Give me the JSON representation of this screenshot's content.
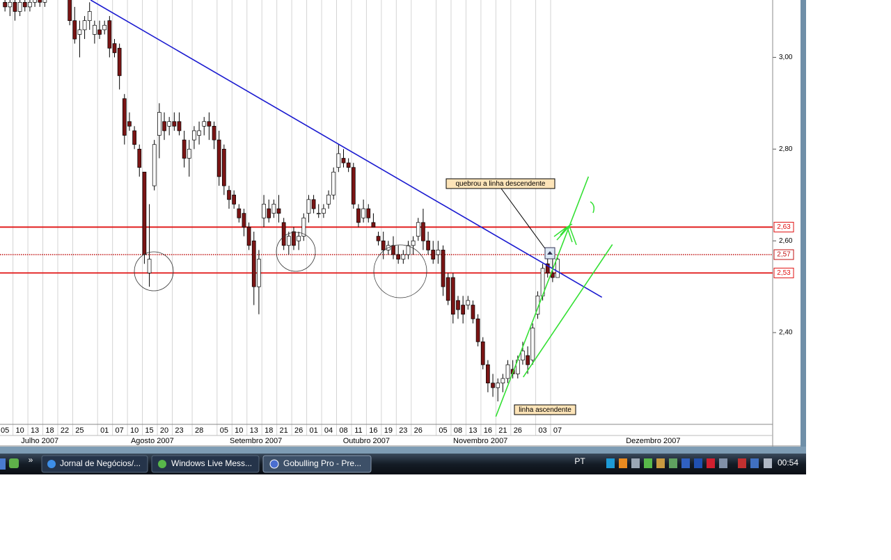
{
  "chart_data": {
    "type": "candlestick",
    "x": [
      0,
      1,
      2,
      3,
      4,
      5,
      6,
      7,
      8,
      13,
      14,
      15,
      16,
      17,
      18,
      19,
      20,
      21,
      22,
      23,
      24,
      25,
      26,
      27,
      28,
      29,
      30,
      31,
      32,
      33,
      34,
      35,
      36,
      37,
      38,
      39,
      40,
      41,
      42,
      43,
      44,
      45,
      46,
      47,
      48,
      49,
      50,
      51,
      52,
      53,
      54,
      55,
      56,
      57,
      58,
      59,
      60,
      61,
      62,
      63,
      64,
      65,
      66,
      67,
      68,
      69,
      70,
      71,
      72,
      73,
      74,
      75,
      76,
      77,
      78,
      79,
      80,
      81,
      82,
      83,
      84,
      85,
      86,
      87,
      88,
      89,
      90,
      91,
      92,
      93,
      94,
      95,
      96,
      97,
      98,
      99,
      100,
      101,
      102,
      103,
      104,
      105,
      106,
      107,
      108,
      109,
      110,
      111
    ],
    "open": [
      3.12,
      3.11,
      3.12,
      3.1,
      3.12,
      3.11,
      3.12,
      3.13,
      3.12,
      3.13,
      3.08,
      3.05,
      3.06,
      3.08,
      3.05,
      3.06,
      3.06,
      3.08,
      3.03,
      3.02,
      2.91,
      2.86,
      2.84,
      2.8,
      2.75,
      2.53,
      2.72,
      2.83,
      2.86,
      2.85,
      2.86,
      2.86,
      2.82,
      2.78,
      2.82,
      2.83,
      2.85,
      2.86,
      2.85,
      2.82,
      2.8,
      2.71,
      2.7,
      2.67,
      2.66,
      2.63,
      2.6,
      2.5,
      2.65,
      2.67,
      2.66,
      2.67,
      2.64,
      2.59,
      2.62,
      2.6,
      2.61,
      2.66,
      2.69,
      2.66,
      2.66,
      2.68,
      2.7,
      2.76,
      2.78,
      2.77,
      2.76,
      2.67,
      2.65,
      2.67,
      2.64,
      2.61,
      2.6,
      2.58,
      2.59,
      2.57,
      2.56,
      2.57,
      2.59,
      2.61,
      2.64,
      2.6,
      2.58,
      2.57,
      2.58,
      2.52,
      2.52,
      2.47,
      2.46,
      2.46,
      2.46,
      2.43,
      2.38,
      2.33,
      2.29,
      2.28,
      2.29,
      2.3,
      2.32,
      2.31,
      2.34,
      2.35,
      2.34,
      2.44,
      2.48,
      2.55,
      2.53,
      2.52
    ],
    "high": [
      3.14,
      3.13,
      3.14,
      3.13,
      3.14,
      3.13,
      3.14,
      3.15,
      3.14,
      3.14,
      3.11,
      3.08,
      3.09,
      3.12,
      3.08,
      3.08,
      3.08,
      3.09,
      3.04,
      3.03,
      2.92,
      2.88,
      2.85,
      2.81,
      2.75,
      2.68,
      2.82,
      2.9,
      2.88,
      2.87,
      2.88,
      2.88,
      2.84,
      2.82,
      2.85,
      2.86,
      2.87,
      2.88,
      2.86,
      2.84,
      2.81,
      2.72,
      2.71,
      2.68,
      2.67,
      2.64,
      2.62,
      2.58,
      2.7,
      2.69,
      2.69,
      2.7,
      2.65,
      2.62,
      2.63,
      2.62,
      2.66,
      2.7,
      2.7,
      2.68,
      2.68,
      2.71,
      2.76,
      2.81,
      2.8,
      2.78,
      2.77,
      2.68,
      2.69,
      2.68,
      2.66,
      2.62,
      2.62,
      2.6,
      2.61,
      2.59,
      2.58,
      2.6,
      2.61,
      2.65,
      2.67,
      2.62,
      2.6,
      2.6,
      2.59,
      2.53,
      2.53,
      2.48,
      2.48,
      2.48,
      2.47,
      2.44,
      2.39,
      2.34,
      2.31,
      2.3,
      2.31,
      2.34,
      2.34,
      2.35,
      2.38,
      2.37,
      2.42,
      2.49,
      2.55,
      2.57,
      2.56,
      2.57
    ],
    "low": [
      3.1,
      3.09,
      3.08,
      3.09,
      3.1,
      3.1,
      3.11,
      3.11,
      3.11,
      3.07,
      3.03,
      3.0,
      3.04,
      3.06,
      3.03,
      3.04,
      3.05,
      3.0,
      3.0,
      2.93,
      2.81,
      2.84,
      2.8,
      2.74,
      2.55,
      2.5,
      2.71,
      2.78,
      2.82,
      2.83,
      2.84,
      2.83,
      2.76,
      2.74,
      2.8,
      2.81,
      2.83,
      2.82,
      2.8,
      2.72,
      2.7,
      2.67,
      2.67,
      2.64,
      2.61,
      2.58,
      2.46,
      2.44,
      2.63,
      2.64,
      2.65,
      2.64,
      2.58,
      2.57,
      2.58,
      2.58,
      2.6,
      2.64,
      2.66,
      2.65,
      2.65,
      2.67,
      2.69,
      2.75,
      2.76,
      2.75,
      2.67,
      2.63,
      2.64,
      2.64,
      2.63,
      2.59,
      2.56,
      2.57,
      2.56,
      2.55,
      2.55,
      2.56,
      2.57,
      2.6,
      2.58,
      2.57,
      2.55,
      2.55,
      2.48,
      2.46,
      2.42,
      2.43,
      2.42,
      2.45,
      2.42,
      2.37,
      2.32,
      2.27,
      2.26,
      2.25,
      2.27,
      2.29,
      2.3,
      2.3,
      2.33,
      2.31,
      2.33,
      2.43,
      2.47,
      2.52,
      2.51,
      2.52
    ],
    "close": [
      3.11,
      3.12,
      3.1,
      3.12,
      3.11,
      3.12,
      3.13,
      3.12,
      3.13,
      3.08,
      3.04,
      3.06,
      3.08,
      3.1,
      3.07,
      3.05,
      3.07,
      3.02,
      3.01,
      2.96,
      2.83,
      2.85,
      2.81,
      2.76,
      2.57,
      2.56,
      2.81,
      2.88,
      2.84,
      2.86,
      2.85,
      2.84,
      2.78,
      2.8,
      2.84,
      2.84,
      2.86,
      2.85,
      2.82,
      2.74,
      2.72,
      2.69,
      2.68,
      2.65,
      2.63,
      2.59,
      2.5,
      2.56,
      2.68,
      2.65,
      2.68,
      2.66,
      2.59,
      2.61,
      2.59,
      2.61,
      2.65,
      2.69,
      2.67,
      2.66,
      2.67,
      2.7,
      2.75,
      2.79,
      2.77,
      2.76,
      2.68,
      2.64,
      2.67,
      2.65,
      2.63,
      2.6,
      2.58,
      2.59,
      2.57,
      2.56,
      2.57,
      2.59,
      2.6,
      2.64,
      2.6,
      2.58,
      2.56,
      2.58,
      2.5,
      2.47,
      2.44,
      2.45,
      2.44,
      2.47,
      2.43,
      2.38,
      2.33,
      2.29,
      2.28,
      2.29,
      2.3,
      2.33,
      2.31,
      2.34,
      2.36,
      2.33,
      2.41,
      2.48,
      2.54,
      2.53,
      2.52,
      2.56
    ],
    "up_color": "#ffffff",
    "down_color": "#7a1414",
    "xlim": [
      -1,
      154.2
    ],
    "ylim": [
      2.2,
      3.125
    ],
    "xticks": [
      {
        "value": 0,
        "label": "05"
      },
      {
        "value": 3,
        "label": "10"
      },
      {
        "value": 6,
        "label": "13"
      },
      {
        "value": 9,
        "label": "18"
      },
      {
        "value": 12,
        "label": "22"
      },
      {
        "value": 15,
        "label": "25"
      },
      {
        "value": 20,
        "label": "01"
      },
      {
        "value": 23,
        "label": "07"
      },
      {
        "value": 26,
        "label": "10"
      },
      {
        "value": 29,
        "label": "15"
      },
      {
        "value": 32,
        "label": "20"
      },
      {
        "value": 35,
        "label": "23"
      },
      {
        "value": 39,
        "label": "28"
      },
      {
        "value": 44,
        "label": "05"
      },
      {
        "value": 47,
        "label": "10"
      },
      {
        "value": 50,
        "label": "13"
      },
      {
        "value": 53,
        "label": "18"
      },
      {
        "value": 56,
        "label": "21"
      },
      {
        "value": 59,
        "label": "26"
      },
      {
        "value": 62,
        "label": "01"
      },
      {
        "value": 65,
        "label": "04"
      },
      {
        "value": 68,
        "label": "08"
      },
      {
        "value": 71,
        "label": "11"
      },
      {
        "value": 74,
        "label": "16"
      },
      {
        "value": 77,
        "label": "19"
      },
      {
        "value": 80,
        "label": "23"
      },
      {
        "value": 83,
        "label": "26"
      },
      {
        "value": 88,
        "label": "05"
      },
      {
        "value": 91,
        "label": "08"
      },
      {
        "value": 94,
        "label": "13"
      },
      {
        "value": 97,
        "label": "16"
      },
      {
        "value": 100,
        "label": "21"
      },
      {
        "value": 103,
        "label": "26"
      },
      {
        "value": 108,
        "label": "03"
      },
      {
        "value": 111,
        "label": "07"
      }
    ],
    "months": [
      {
        "value": 7,
        "label": "Julho 2007"
      },
      {
        "value": 29.6,
        "label": "Agosto 2007"
      },
      {
        "value": 50.4,
        "label": "Setembro 2007"
      },
      {
        "value": 72.6,
        "label": "Outubro 2007"
      },
      {
        "value": 95.5,
        "label": "Novembro 2007"
      },
      {
        "value": 130.2,
        "label": "Dezembro 2007"
      }
    ],
    "yticks": [
      {
        "value": 3.0,
        "label": "3,00"
      },
      {
        "value": 2.8,
        "label": "2,80"
      },
      {
        "value": 2.6,
        "label": "2,60"
      },
      {
        "value": 2.4,
        "label": "2,40"
      }
    ],
    "levels": [
      {
        "value": 2.63,
        "label": "2,63",
        "color": "#e01010",
        "style": "solid"
      },
      {
        "value": 2.57,
        "label": "2,57",
        "color": "#c01010",
        "style": "dotted"
      },
      {
        "value": 2.53,
        "label": "2,53",
        "color": "#e01010",
        "style": "solid"
      }
    ],
    "trendlines": [
      {
        "x": [
          17.2,
          119.9
        ],
        "y": [
          3.125,
          2.477
        ],
        "color": "#1a1ad0"
      },
      {
        "x": [
          98.6,
          117.2
        ],
        "y": [
          2.217,
          2.74
        ],
        "color": "#33e033"
      },
      {
        "x": [
          104.1,
          122.0
        ],
        "y": [
          2.303,
          2.592
        ],
        "color": "#33e033"
      }
    ],
    "annotations": [
      "quebrou a linha descendente",
      "linha ascendente"
    ]
  },
  "taskbar": {
    "chevron": "»",
    "windows": [
      "Jornal de Negócios/...",
      "Windows Live Mess...",
      "Gobulling Pro - Pre..."
    ],
    "language": "PT",
    "clock": "00:54"
  }
}
